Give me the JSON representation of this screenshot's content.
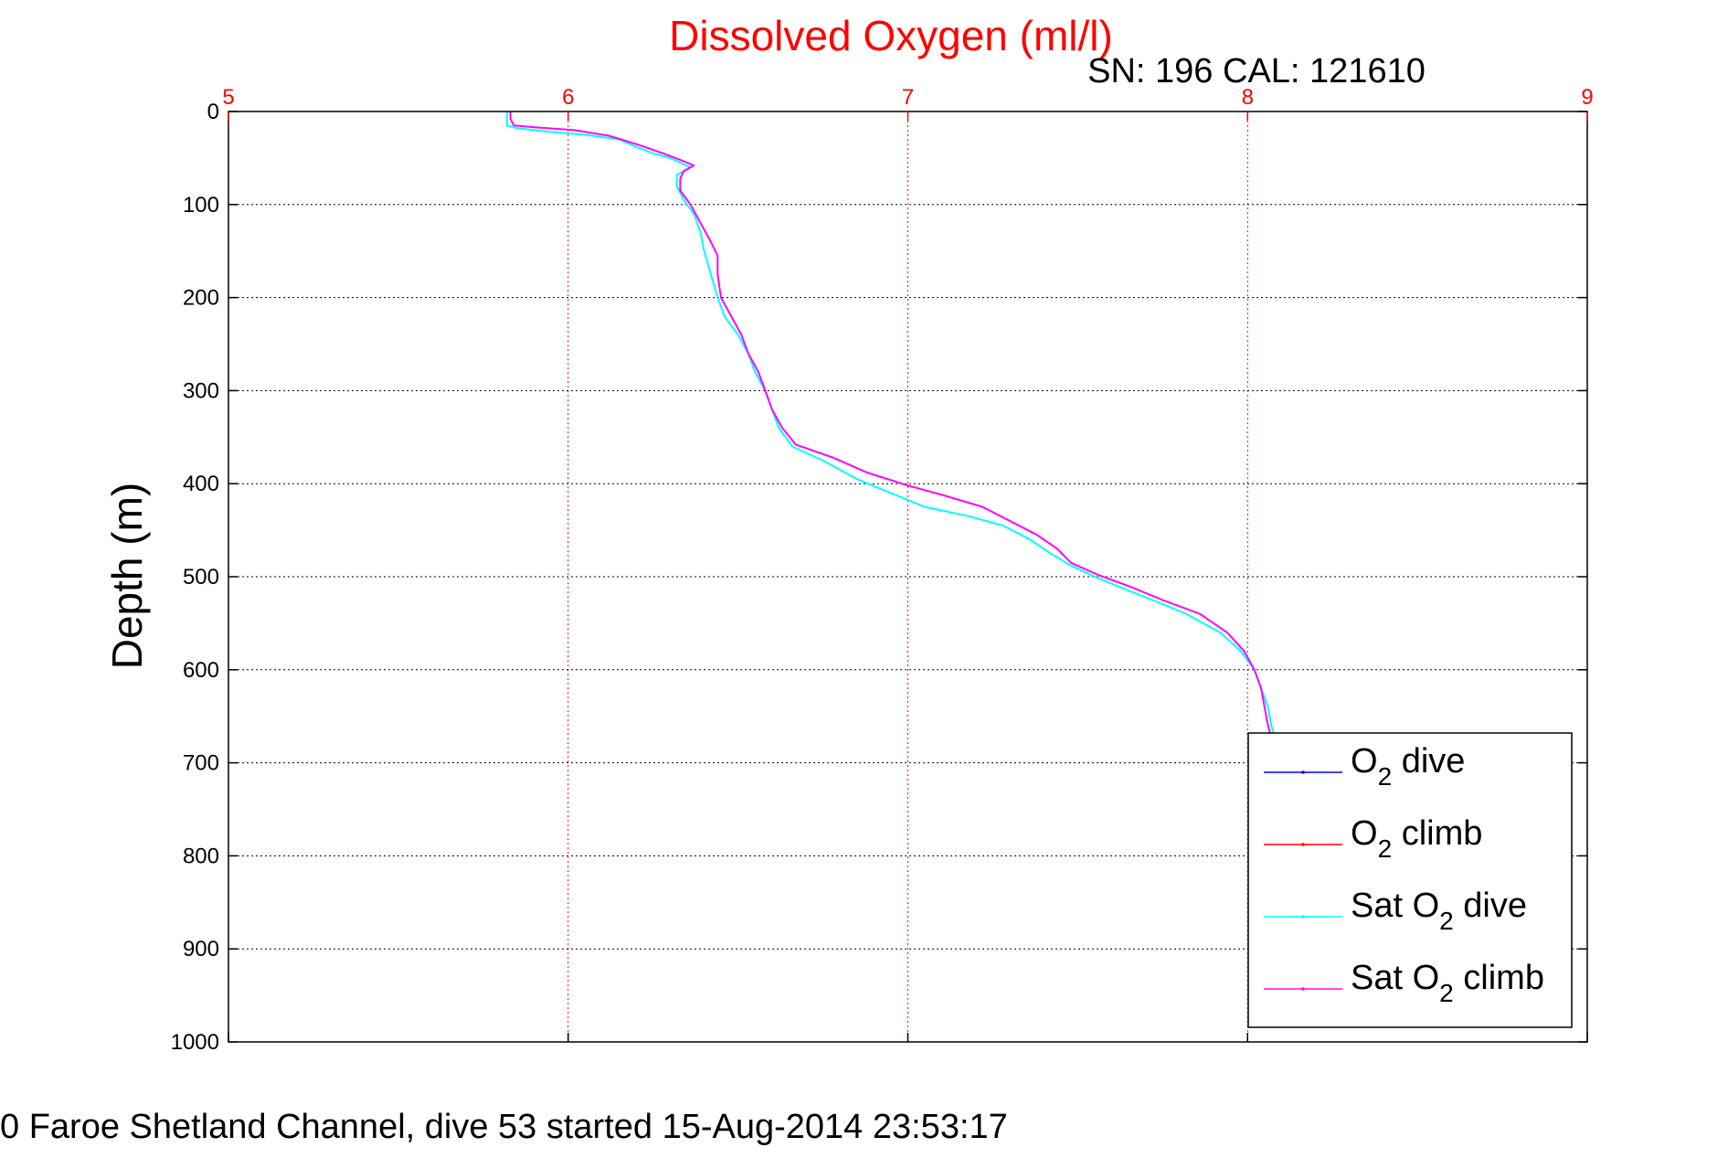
{
  "chart_data": {
    "type": "line",
    "title": "Dissolved Oxygen (ml/l)",
    "subtitle": "SN: 196  CAL: 121610",
    "xlabel": "",
    "ylabel": "Depth (m)",
    "footer": "0 Faroe Shetland Channel, dive 53 started 15-Aug-2014 23:53:17",
    "x_axis_position": "top",
    "y_reversed": true,
    "xlim": [
      5,
      9
    ],
    "ylim": [
      0,
      1000
    ],
    "x_ticks": [
      "5",
      "6",
      "7",
      "8",
      "9"
    ],
    "x_tick_values": [
      5,
      6,
      7,
      8,
      9
    ],
    "y_ticks": [
      "0",
      "100",
      "200",
      "300",
      "400",
      "500",
      "600",
      "700",
      "800",
      "900",
      "1000"
    ],
    "y_tick_values": [
      0,
      100,
      200,
      300,
      400,
      500,
      600,
      700,
      800,
      900,
      1000
    ],
    "grid": true,
    "legend_placement": "bottom-right",
    "colors": {
      "title": "#ff0000",
      "x_axis": "#ff0000",
      "y_axis": "#000000",
      "grid_x": "#ff0000",
      "grid_y": "#000000"
    },
    "series": [
      {
        "name": "O2 dive",
        "legend_base": "O",
        "legend_sub": "2",
        "legend_rest": " dive",
        "color": "#0000ff",
        "points": []
      },
      {
        "name": "O2 climb",
        "legend_base": "O",
        "legend_sub": "2",
        "legend_rest": " climb",
        "color": "#ff0000",
        "points": []
      },
      {
        "name": "Sat O2 dive",
        "legend_base": "Sat O",
        "legend_sub": "2",
        "legend_rest": " dive",
        "color": "#00ffff",
        "points": [
          [
            5.82,
            0
          ],
          [
            5.82,
            8
          ],
          [
            5.82,
            15
          ],
          [
            5.85,
            18
          ],
          [
            5.95,
            22
          ],
          [
            6.05,
            25
          ],
          [
            6.15,
            30
          ],
          [
            6.2,
            38
          ],
          [
            6.25,
            45
          ],
          [
            6.3,
            50
          ],
          [
            6.33,
            55
          ],
          [
            6.36,
            60
          ],
          [
            6.32,
            68
          ],
          [
            6.32,
            80
          ],
          [
            6.34,
            95
          ],
          [
            6.37,
            110
          ],
          [
            6.39,
            130
          ],
          [
            6.4,
            150
          ],
          [
            6.42,
            175
          ],
          [
            6.44,
            200
          ],
          [
            6.46,
            220
          ],
          [
            6.5,
            240
          ],
          [
            6.53,
            260
          ],
          [
            6.55,
            280
          ],
          [
            6.58,
            300
          ],
          [
            6.6,
            320
          ],
          [
            6.62,
            340
          ],
          [
            6.66,
            360
          ],
          [
            6.75,
            375
          ],
          [
            6.85,
            395
          ],
          [
            6.95,
            410
          ],
          [
            7.05,
            425
          ],
          [
            7.18,
            435
          ],
          [
            7.28,
            445
          ],
          [
            7.36,
            460
          ],
          [
            7.42,
            475
          ],
          [
            7.48,
            488
          ],
          [
            7.55,
            500
          ],
          [
            7.63,
            512
          ],
          [
            7.72,
            525
          ],
          [
            7.82,
            540
          ],
          [
            7.92,
            560
          ],
          [
            7.98,
            580
          ],
          [
            8.02,
            600
          ],
          [
            8.04,
            620
          ],
          [
            8.06,
            640
          ],
          [
            8.07,
            660
          ],
          [
            8.08,
            672
          ]
        ]
      },
      {
        "name": "Sat O2 climb",
        "legend_base": "Sat O",
        "legend_sub": "2",
        "legend_rest": " climb",
        "color": "#ff00ff",
        "points": [
          [
            5.83,
            0
          ],
          [
            5.83,
            8
          ],
          [
            5.84,
            15
          ],
          [
            5.9,
            17
          ],
          [
            6.02,
            20
          ],
          [
            6.12,
            26
          ],
          [
            6.2,
            35
          ],
          [
            6.28,
            45
          ],
          [
            6.33,
            52
          ],
          [
            6.37,
            58
          ],
          [
            6.34,
            64
          ],
          [
            6.33,
            72
          ],
          [
            6.33,
            85
          ],
          [
            6.36,
            100
          ],
          [
            6.39,
            120
          ],
          [
            6.42,
            140
          ],
          [
            6.44,
            155
          ],
          [
            6.44,
            175
          ],
          [
            6.45,
            200
          ],
          [
            6.48,
            220
          ],
          [
            6.51,
            240
          ],
          [
            6.53,
            260
          ],
          [
            6.56,
            280
          ],
          [
            6.58,
            300
          ],
          [
            6.6,
            320
          ],
          [
            6.63,
            340
          ],
          [
            6.67,
            358
          ],
          [
            6.78,
            372
          ],
          [
            6.88,
            388
          ],
          [
            7.0,
            402
          ],
          [
            7.1,
            412
          ],
          [
            7.22,
            425
          ],
          [
            7.3,
            440
          ],
          [
            7.38,
            455
          ],
          [
            7.44,
            470
          ],
          [
            7.48,
            485
          ],
          [
            7.56,
            498
          ],
          [
            7.65,
            510
          ],
          [
            7.75,
            525
          ],
          [
            7.86,
            540
          ],
          [
            7.94,
            560
          ],
          [
            7.99,
            580
          ],
          [
            8.02,
            600
          ],
          [
            8.04,
            620
          ],
          [
            8.05,
            640
          ],
          [
            8.06,
            660
          ],
          [
            8.07,
            672
          ]
        ]
      }
    ]
  }
}
